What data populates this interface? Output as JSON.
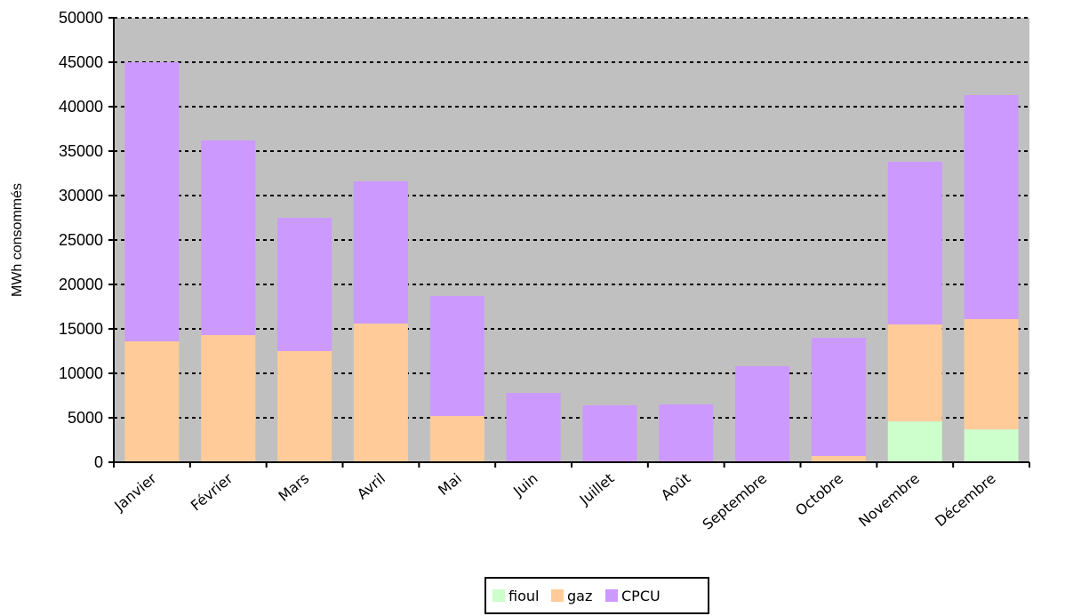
{
  "chart_data": {
    "type": "bar",
    "stacked": true,
    "ylabel": "MWh consommés",
    "xlabel": "",
    "ylim": [
      0,
      50000
    ],
    "yticks": [
      0,
      5000,
      10000,
      15000,
      20000,
      25000,
      30000,
      35000,
      40000,
      45000,
      50000
    ],
    "categories": [
      "Janvier",
      "Février",
      "Mars",
      "Avril",
      "Mai",
      "Juin",
      "Juillet",
      "Août",
      "Septembre",
      "Octobre",
      "Novembre",
      "Décembre"
    ],
    "series": [
      {
        "name": "fioul",
        "color": "#ccffcc",
        "values": [
          0,
          0,
          0,
          0,
          0,
          0,
          0,
          0,
          0,
          0,
          4600,
          3700
        ]
      },
      {
        "name": "gaz",
        "color": "#ffcc99",
        "values": [
          13600,
          14300,
          12500,
          15600,
          5200,
          0,
          0,
          0,
          0,
          700,
          10900,
          12400
        ]
      },
      {
        "name": "CPCU",
        "color": "#cc99ff",
        "values": [
          31400,
          21900,
          15000,
          16000,
          13500,
          7800,
          6400,
          6500,
          10800,
          13300,
          18300,
          25200
        ]
      }
    ],
    "grid": true,
    "legend": "bottom"
  }
}
